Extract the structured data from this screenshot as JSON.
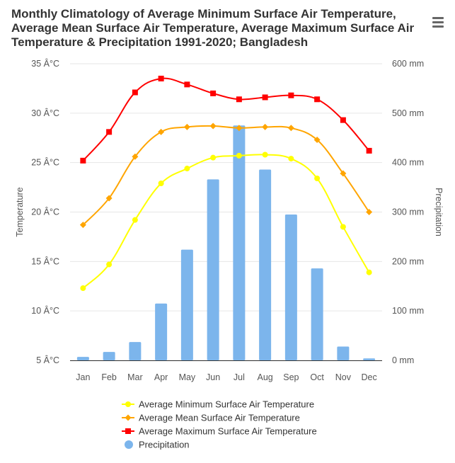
{
  "title": "Monthly Climatology of Average Minimum Surface Air Temperature, Average Mean Surface Air Temperature, Average Maximum Surface Air Temperature & Precipitation 1991-2020; Bangladesh",
  "menu_icon": "hamburger-menu-icon",
  "chart_data": {
    "type": "bar+line",
    "title": "Monthly Climatology of Average Minimum Surface Air Temperature, Average Mean Surface Air Temperature, Average Maximum Surface Air Temperature & Precipitation 1991-2020; Bangladesh",
    "categories": [
      "Jan",
      "Feb",
      "Mar",
      "Apr",
      "May",
      "Jun",
      "Jul",
      "Aug",
      "Sep",
      "Oct",
      "Nov",
      "Dec"
    ],
    "y_left": {
      "label": "Temperature",
      "range": [
        5,
        35
      ],
      "ticks": [
        5,
        10,
        15,
        20,
        25,
        30,
        35
      ],
      "tick_labels": [
        "5 Â°C",
        "10 Â°C",
        "15 Â°C",
        "20 Â°C",
        "25 Â°C",
        "30 Â°C",
        "35 Â°C"
      ]
    },
    "y_right": {
      "label": "Precipitation",
      "range": [
        0,
        600
      ],
      "ticks": [
        0,
        100,
        200,
        300,
        400,
        500,
        600
      ],
      "tick_labels": [
        "0 mm",
        "100 mm",
        "200 mm",
        "300 mm",
        "400 mm",
        "500 mm",
        "600 mm"
      ]
    },
    "grid": true,
    "legend_position": "bottom-center",
    "series": [
      {
        "name": "Average Minimum Surface Air Temperature",
        "kind": "spline",
        "axis": "left",
        "marker": "circle",
        "color": "#ffff00",
        "values": [
          12.3,
          14.7,
          19.2,
          22.9,
          24.4,
          25.5,
          25.7,
          25.8,
          25.4,
          23.4,
          18.5,
          13.9
        ]
      },
      {
        "name": "Average Mean Surface Air Temperature",
        "kind": "spline",
        "axis": "left",
        "marker": "diamond",
        "color": "#ffa500",
        "values": [
          18.7,
          21.4,
          25.6,
          28.1,
          28.6,
          28.7,
          28.5,
          28.6,
          28.5,
          27.3,
          23.9,
          20.0
        ]
      },
      {
        "name": "Average Maximum Surface Air Temperature",
        "kind": "spline",
        "axis": "left",
        "marker": "square",
        "color": "#ff0000",
        "values": [
          25.2,
          28.1,
          32.1,
          33.5,
          32.9,
          32.0,
          31.4,
          31.6,
          31.8,
          31.4,
          29.3,
          26.2
        ]
      },
      {
        "name": "Precipitation",
        "kind": "bar",
        "axis": "right",
        "marker": "circle",
        "color": "#7cb5ec",
        "values": [
          7,
          17,
          37,
          115,
          224,
          366,
          475,
          386,
          295,
          186,
          28,
          4
        ]
      }
    ]
  }
}
